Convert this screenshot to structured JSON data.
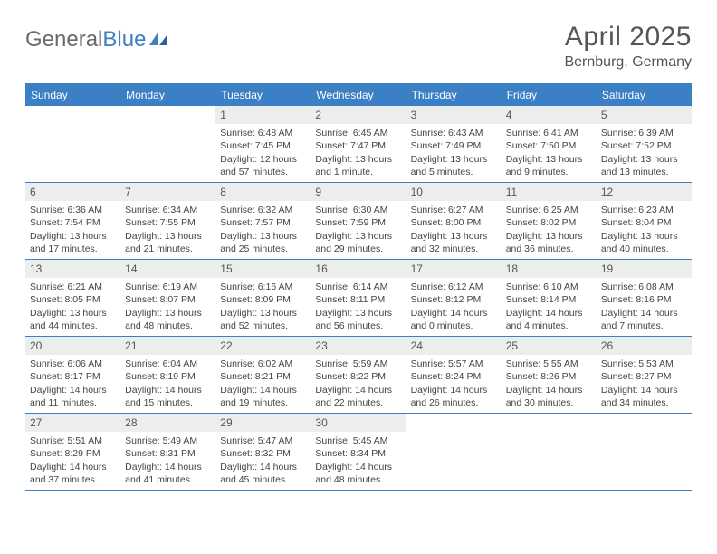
{
  "logo": {
    "part1": "General",
    "part2": "Blue"
  },
  "title": "April 2025",
  "location": "Bernburg, Germany",
  "colors": {
    "accent": "#3b7fc4",
    "header_text": "#ffffff",
    "daynum_bg": "#eceded",
    "body_text": "#444444",
    "title_text": "#555555"
  },
  "day_names": [
    "Sunday",
    "Monday",
    "Tuesday",
    "Wednesday",
    "Thursday",
    "Friday",
    "Saturday"
  ],
  "weeks": [
    [
      null,
      null,
      {
        "num": "1",
        "sunrise": "Sunrise: 6:48 AM",
        "sunset": "Sunset: 7:45 PM",
        "daylight": "Daylight: 12 hours and 57 minutes."
      },
      {
        "num": "2",
        "sunrise": "Sunrise: 6:45 AM",
        "sunset": "Sunset: 7:47 PM",
        "daylight": "Daylight: 13 hours and 1 minute."
      },
      {
        "num": "3",
        "sunrise": "Sunrise: 6:43 AM",
        "sunset": "Sunset: 7:49 PM",
        "daylight": "Daylight: 13 hours and 5 minutes."
      },
      {
        "num": "4",
        "sunrise": "Sunrise: 6:41 AM",
        "sunset": "Sunset: 7:50 PM",
        "daylight": "Daylight: 13 hours and 9 minutes."
      },
      {
        "num": "5",
        "sunrise": "Sunrise: 6:39 AM",
        "sunset": "Sunset: 7:52 PM",
        "daylight": "Daylight: 13 hours and 13 minutes."
      }
    ],
    [
      {
        "num": "6",
        "sunrise": "Sunrise: 6:36 AM",
        "sunset": "Sunset: 7:54 PM",
        "daylight": "Daylight: 13 hours and 17 minutes."
      },
      {
        "num": "7",
        "sunrise": "Sunrise: 6:34 AM",
        "sunset": "Sunset: 7:55 PM",
        "daylight": "Daylight: 13 hours and 21 minutes."
      },
      {
        "num": "8",
        "sunrise": "Sunrise: 6:32 AM",
        "sunset": "Sunset: 7:57 PM",
        "daylight": "Daylight: 13 hours and 25 minutes."
      },
      {
        "num": "9",
        "sunrise": "Sunrise: 6:30 AM",
        "sunset": "Sunset: 7:59 PM",
        "daylight": "Daylight: 13 hours and 29 minutes."
      },
      {
        "num": "10",
        "sunrise": "Sunrise: 6:27 AM",
        "sunset": "Sunset: 8:00 PM",
        "daylight": "Daylight: 13 hours and 32 minutes."
      },
      {
        "num": "11",
        "sunrise": "Sunrise: 6:25 AM",
        "sunset": "Sunset: 8:02 PM",
        "daylight": "Daylight: 13 hours and 36 minutes."
      },
      {
        "num": "12",
        "sunrise": "Sunrise: 6:23 AM",
        "sunset": "Sunset: 8:04 PM",
        "daylight": "Daylight: 13 hours and 40 minutes."
      }
    ],
    [
      {
        "num": "13",
        "sunrise": "Sunrise: 6:21 AM",
        "sunset": "Sunset: 8:05 PM",
        "daylight": "Daylight: 13 hours and 44 minutes."
      },
      {
        "num": "14",
        "sunrise": "Sunrise: 6:19 AM",
        "sunset": "Sunset: 8:07 PM",
        "daylight": "Daylight: 13 hours and 48 minutes."
      },
      {
        "num": "15",
        "sunrise": "Sunrise: 6:16 AM",
        "sunset": "Sunset: 8:09 PM",
        "daylight": "Daylight: 13 hours and 52 minutes."
      },
      {
        "num": "16",
        "sunrise": "Sunrise: 6:14 AM",
        "sunset": "Sunset: 8:11 PM",
        "daylight": "Daylight: 13 hours and 56 minutes."
      },
      {
        "num": "17",
        "sunrise": "Sunrise: 6:12 AM",
        "sunset": "Sunset: 8:12 PM",
        "daylight": "Daylight: 14 hours and 0 minutes."
      },
      {
        "num": "18",
        "sunrise": "Sunrise: 6:10 AM",
        "sunset": "Sunset: 8:14 PM",
        "daylight": "Daylight: 14 hours and 4 minutes."
      },
      {
        "num": "19",
        "sunrise": "Sunrise: 6:08 AM",
        "sunset": "Sunset: 8:16 PM",
        "daylight": "Daylight: 14 hours and 7 minutes."
      }
    ],
    [
      {
        "num": "20",
        "sunrise": "Sunrise: 6:06 AM",
        "sunset": "Sunset: 8:17 PM",
        "daylight": "Daylight: 14 hours and 11 minutes."
      },
      {
        "num": "21",
        "sunrise": "Sunrise: 6:04 AM",
        "sunset": "Sunset: 8:19 PM",
        "daylight": "Daylight: 14 hours and 15 minutes."
      },
      {
        "num": "22",
        "sunrise": "Sunrise: 6:02 AM",
        "sunset": "Sunset: 8:21 PM",
        "daylight": "Daylight: 14 hours and 19 minutes."
      },
      {
        "num": "23",
        "sunrise": "Sunrise: 5:59 AM",
        "sunset": "Sunset: 8:22 PM",
        "daylight": "Daylight: 14 hours and 22 minutes."
      },
      {
        "num": "24",
        "sunrise": "Sunrise: 5:57 AM",
        "sunset": "Sunset: 8:24 PM",
        "daylight": "Daylight: 14 hours and 26 minutes."
      },
      {
        "num": "25",
        "sunrise": "Sunrise: 5:55 AM",
        "sunset": "Sunset: 8:26 PM",
        "daylight": "Daylight: 14 hours and 30 minutes."
      },
      {
        "num": "26",
        "sunrise": "Sunrise: 5:53 AM",
        "sunset": "Sunset: 8:27 PM",
        "daylight": "Daylight: 14 hours and 34 minutes."
      }
    ],
    [
      {
        "num": "27",
        "sunrise": "Sunrise: 5:51 AM",
        "sunset": "Sunset: 8:29 PM",
        "daylight": "Daylight: 14 hours and 37 minutes."
      },
      {
        "num": "28",
        "sunrise": "Sunrise: 5:49 AM",
        "sunset": "Sunset: 8:31 PM",
        "daylight": "Daylight: 14 hours and 41 minutes."
      },
      {
        "num": "29",
        "sunrise": "Sunrise: 5:47 AM",
        "sunset": "Sunset: 8:32 PM",
        "daylight": "Daylight: 14 hours and 45 minutes."
      },
      {
        "num": "30",
        "sunrise": "Sunrise: 5:45 AM",
        "sunset": "Sunset: 8:34 PM",
        "daylight": "Daylight: 14 hours and 48 minutes."
      },
      null,
      null,
      null
    ]
  ]
}
